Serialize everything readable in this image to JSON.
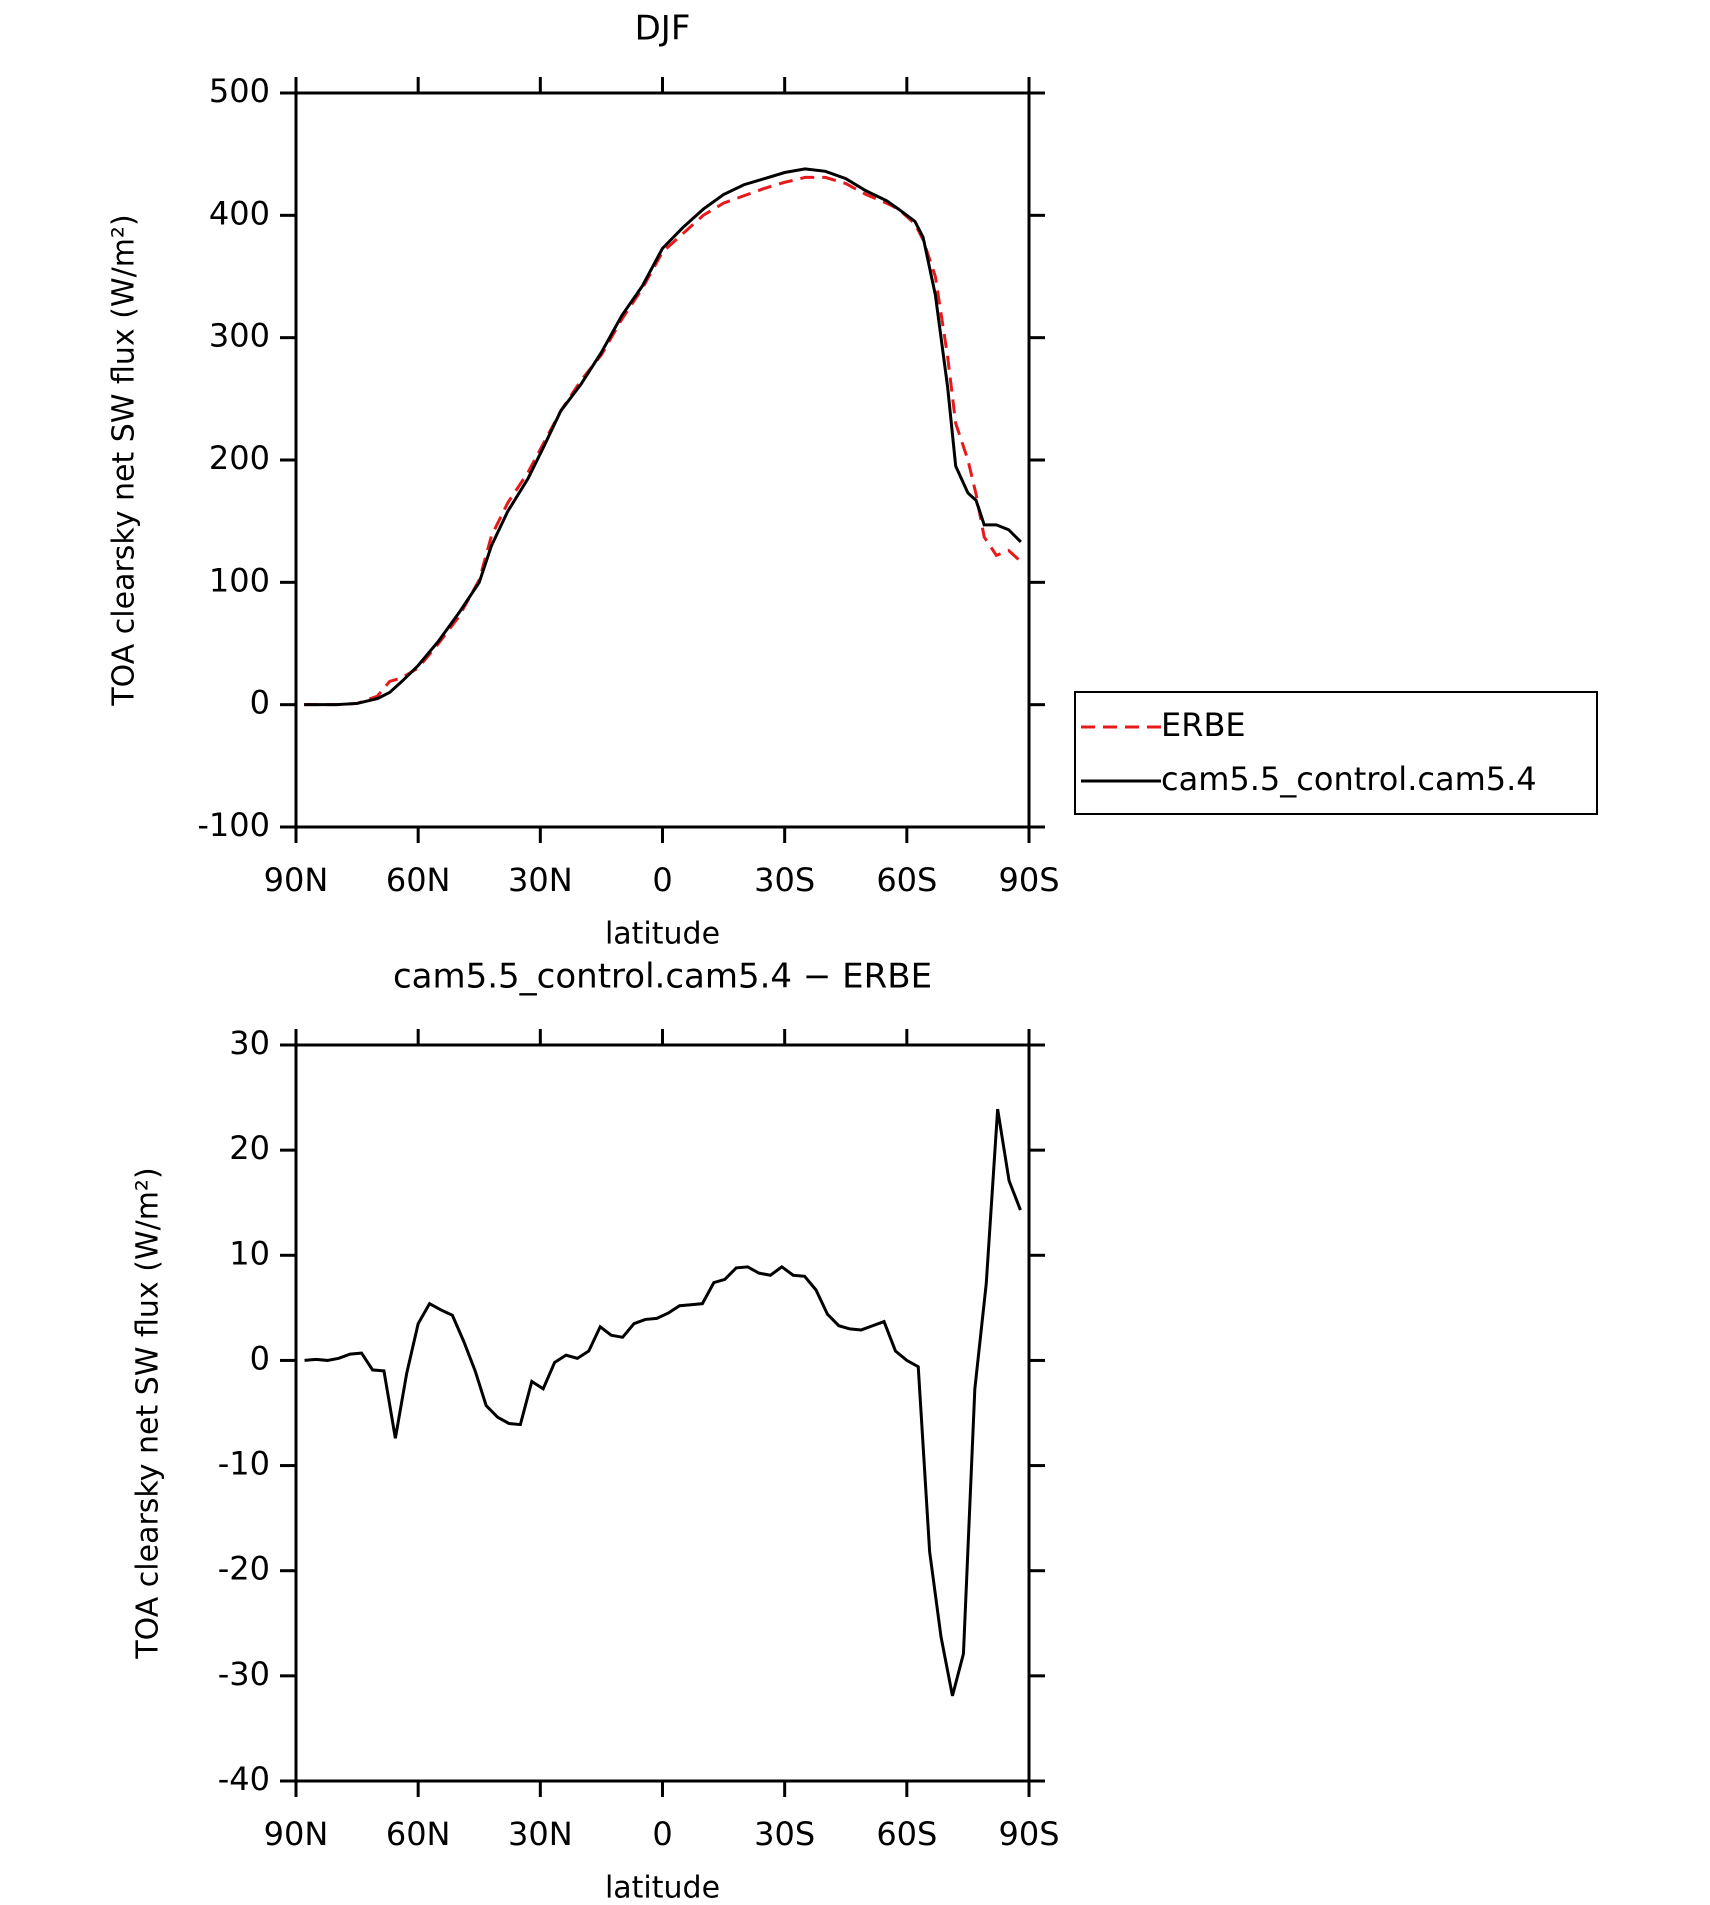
{
  "chart_data": [
    {
      "type": "line",
      "title": "DJF",
      "xlabel": "latitude",
      "ylabel": "TOA clearsky net SW flux (W/m²)",
      "x": [
        88,
        80,
        75,
        70,
        67,
        64,
        60,
        55,
        50,
        45,
        42,
        38,
        33,
        29,
        25,
        20,
        15,
        10,
        5,
        0,
        -5,
        -10,
        -15,
        -20,
        -25,
        -30,
        -35,
        -40,
        -45,
        -50,
        -55,
        -58,
        -62,
        -64,
        -67,
        -70,
        -72,
        -75,
        -77,
        -79,
        -82,
        -85,
        -88
      ],
      "series": [
        {
          "name": "ERBE",
          "color": "#e8191b",
          "dash": true,
          "values": [
            0,
            0,
            1,
            7,
            19,
            22,
            30,
            50,
            72,
            102,
            138,
            165,
            190,
            215,
            240,
            265,
            286,
            315,
            340,
            370,
            385,
            400,
            410,
            416,
            422,
            427,
            431,
            431,
            426,
            417,
            410,
            405,
            393,
            380,
            350,
            285,
            230,
            200,
            172,
            137,
            122,
            126,
            117
          ]
        },
        {
          "name": "cam5.5_control.cam5.4",
          "color": "#000000",
          "dash": false,
          "values": [
            0,
            0,
            1,
            5,
            10,
            19,
            32,
            52,
            75,
            100,
            130,
            158,
            185,
            212,
            240,
            262,
            288,
            318,
            342,
            373,
            390,
            405,
            417,
            425,
            430,
            435,
            438,
            436,
            430,
            420,
            412,
            405,
            395,
            382,
            335,
            260,
            195,
            173,
            167,
            147,
            147,
            143,
            133
          ]
        }
      ],
      "xlim": [
        90,
        -90
      ],
      "xticks": [
        {
          "value": 90,
          "label": "90N"
        },
        {
          "value": 60,
          "label": "60N"
        },
        {
          "value": 30,
          "label": "30N"
        },
        0,
        {
          "value": -30,
          "label": "30S"
        },
        {
          "value": -60,
          "label": "60S"
        },
        {
          "value": -90,
          "label": "90S"
        }
      ],
      "ylim": [
        -100,
        500
      ],
      "yticks": [
        -100,
        0,
        100,
        200,
        300,
        400,
        500
      ],
      "legend": "right"
    },
    {
      "type": "line",
      "title": "cam5.5_control.cam5.4 − ERBE",
      "xlabel": "latitude",
      "ylabel": "TOA clearsky net SW flux (W/m²)",
      "x": [
        87.9,
        85.1,
        82.3,
        79.5,
        76.7,
        73.9,
        71.2,
        68.4,
        65.6,
        62.8,
        60.0,
        57.2,
        54.4,
        51.6,
        48.8,
        46.0,
        43.3,
        40.5,
        37.7,
        34.9,
        32.1,
        29.3,
        26.5,
        23.7,
        20.9,
        18.1,
        15.3,
        12.6,
        9.8,
        7.0,
        4.2,
        1.4,
        -1.4,
        -4.2,
        -7.0,
        -9.8,
        -12.6,
        -15.3,
        -18.1,
        -20.9,
        -23.7,
        -26.5,
        -29.3,
        -32.1,
        -34.9,
        -37.7,
        -40.5,
        -43.3,
        -46.0,
        -48.8,
        -51.6,
        -54.4,
        -57.2,
        -60.0,
        -62.8,
        -65.6,
        -68.4,
        -71.2,
        -73.9,
        -76.7,
        -79.5,
        -82.3,
        -85.1,
        -87.9
      ],
      "series": [
        {
          "color": "#000000",
          "dash": false,
          "values": [
            0,
            0.1,
            0,
            0.2,
            0.6,
            0.7,
            -0.9,
            -1.0,
            -7.4,
            -1.2,
            3.5,
            5.4,
            4.8,
            4.3,
            1.8,
            -1.0,
            -4.3,
            -5.4,
            -6.0,
            -6.1,
            -2.0,
            -2.7,
            -0.2,
            0.5,
            0.2,
            0.9,
            3.2,
            2.4,
            2.2,
            3.5,
            3.9,
            4.0,
            4.5,
            5.2,
            5.3,
            5.4,
            7.4,
            7.7,
            8.8,
            8.9,
            8.3,
            8.1,
            8.9,
            8.1,
            8.0,
            6.7,
            4.4,
            3.3,
            3.0,
            2.9,
            3.3,
            3.7,
            0.9,
            0,
            -0.6,
            -18.2,
            -26.3,
            -31.9,
            -27.9,
            -2.7,
            7.3,
            23.9,
            17.1,
            14.3
          ]
        }
      ],
      "xlim": [
        90,
        -90
      ],
      "xticks": [
        {
          "value": 90,
          "label": "90N"
        },
        {
          "value": 60,
          "label": "60N"
        },
        {
          "value": 30,
          "label": "30N"
        },
        0,
        {
          "value": -30,
          "label": "30S"
        },
        {
          "value": -60,
          "label": "60S"
        },
        {
          "value": -90,
          "label": "90S"
        }
      ],
      "ylim": [
        -40,
        30
      ],
      "yticks": [
        -40,
        -30,
        -20,
        -10,
        0,
        10,
        20,
        30
      ]
    }
  ]
}
